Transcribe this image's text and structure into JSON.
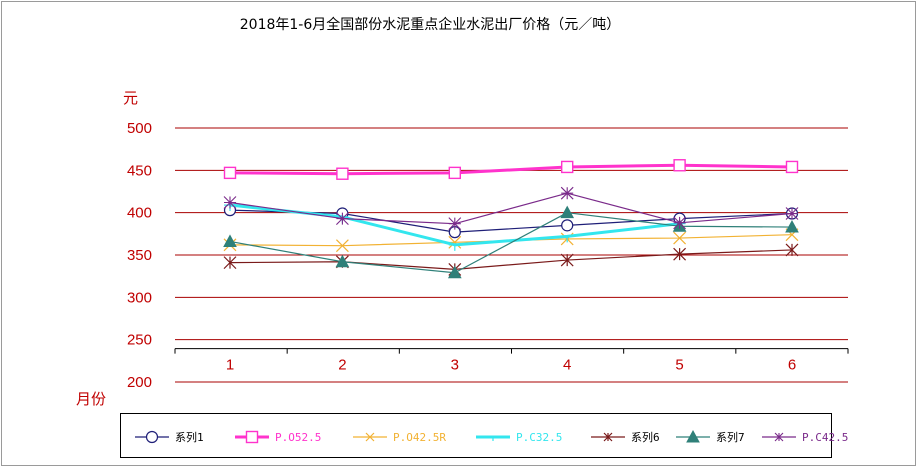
{
  "chart_data": {
    "type": "line",
    "title": "2018年1-6月全国部份水泥重点企业水泥出厂价格（元／吨）",
    "ylabel": "元",
    "xlabel": "月份",
    "ylim": [
      200,
      500
    ],
    "yticks": [
      "500",
      "450",
      "400",
      "350",
      "300",
      "250",
      "200"
    ],
    "categories": [
      "1",
      "2",
      "3",
      "4",
      "5",
      "6"
    ],
    "grid": true,
    "legend_position": "bottom",
    "series": [
      {
        "name": "系列1",
        "values": [
          403,
          399,
          377,
          385,
          393,
          399
        ],
        "color": "#1f1f78",
        "marker": "circle",
        "width": 1.2
      },
      {
        "name": "P.O52.5",
        "values": [
          447,
          446,
          447,
          454,
          456,
          454
        ],
        "color": "#ff33cc",
        "marker": "square",
        "width": 3
      },
      {
        "name": "P.O42.5R",
        "values": [
          362,
          361,
          365,
          369,
          370,
          374
        ],
        "color": "#f2b233",
        "marker": "x",
        "width": 1.2
      },
      {
        "name": "P.C32.5",
        "values": [
          409,
          395,
          362,
          372,
          387,
          null
        ],
        "color": "#33e6ee",
        "marker": "dash",
        "width": 3
      },
      {
        "name": "系列6",
        "values": [
          341,
          342,
          333,
          344,
          351,
          356
        ],
        "color": "#7a1a1a",
        "marker": "star",
        "width": 1.2
      },
      {
        "name": "系列7",
        "values": [
          366,
          342,
          329,
          400,
          384,
          383
        ],
        "color": "#2f8079",
        "marker": "triangle",
        "width": 1.2
      },
      {
        "name": "P.C42.5",
        "values": [
          412,
          393,
          387,
          423,
          388,
          399
        ],
        "color": "#7a2a8a",
        "marker": "asterisk",
        "width": 1.2
      }
    ]
  }
}
